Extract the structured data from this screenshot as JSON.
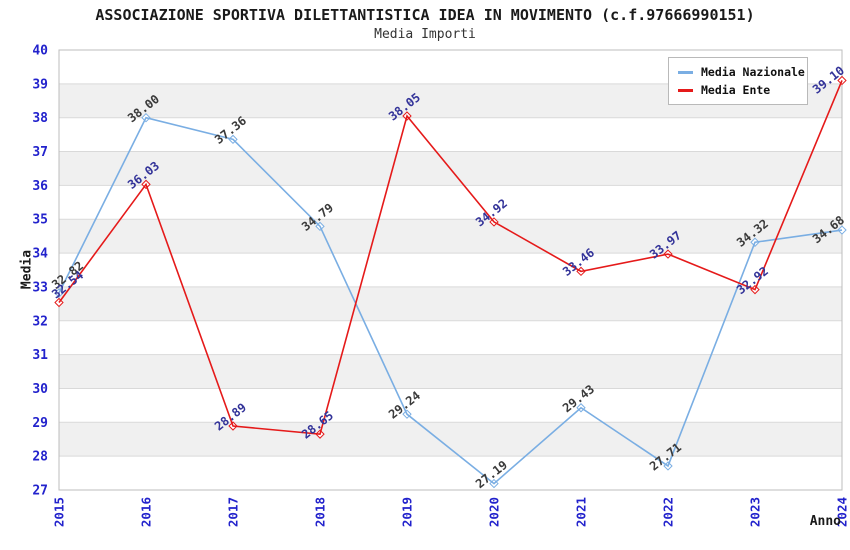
{
  "chart_data": {
    "type": "line",
    "title": "ASSOCIAZIONE SPORTIVA DILETTANTISTICA IDEA IN MOVIMENTO (c.f.97666990151)",
    "subtitle": "Media Importi",
    "xlabel": "Anno",
    "ylabel": "Media",
    "categories": [
      "2015",
      "2016",
      "2017",
      "2018",
      "2019",
      "2020",
      "2021",
      "2022",
      "2023",
      "2024"
    ],
    "y_ticks": [
      27,
      28,
      29,
      30,
      31,
      32,
      33,
      34,
      35,
      36,
      37,
      38,
      39,
      40
    ],
    "ylim": [
      27,
      40
    ],
    "grid": "horizontal gridlines, alternating band fill",
    "legend_position": "top-right inside plot",
    "series": [
      {
        "name": "Media Nazionale",
        "color": "#7aaee3",
        "label_color": "#3a3a3a",
        "values": [
          32.82,
          38.0,
          37.36,
          34.79,
          29.24,
          27.19,
          29.43,
          27.71,
          34.32,
          34.68
        ]
      },
      {
        "name": "Media Ente",
        "color": "#e51a1a",
        "label_color": "#333399",
        "values": [
          32.54,
          36.03,
          28.89,
          28.65,
          38.05,
          34.92,
          33.46,
          33.97,
          32.92,
          39.1
        ]
      }
    ],
    "style": {
      "tick_label_color": "#2222cc",
      "band_color": "#f0f0f0",
      "gridline_color": "#d9d9d9",
      "plot_border_color": "#bdbdbd",
      "background_color": "#ffffff",
      "data_label_rotation_deg": -38
    }
  }
}
